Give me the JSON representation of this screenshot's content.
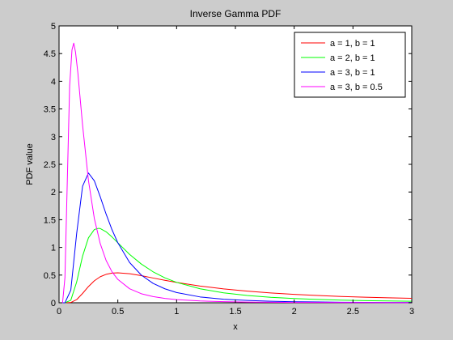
{
  "chart_data": {
    "type": "line",
    "title": "Inverse Gamma PDF",
    "xlabel": "x",
    "ylabel": "PDF value",
    "xlim": [
      0,
      3
    ],
    "ylim": [
      0,
      5
    ],
    "xticks": [
      0,
      0.5,
      1,
      1.5,
      2,
      2.5,
      3
    ],
    "xtick_labels": [
      "0",
      "0.5",
      "1",
      "1.5",
      "2",
      "2.5",
      "3"
    ],
    "yticks": [
      0,
      0.5,
      1,
      1.5,
      2,
      2.5,
      3,
      3.5,
      4,
      4.5,
      5
    ],
    "ytick_labels": [
      "0",
      "0.5",
      "1",
      "1.5",
      "2",
      "2.5",
      "3",
      "3.5",
      "4",
      "4.5",
      "5"
    ],
    "grid": false,
    "legend_position": "top-right",
    "series": [
      {
        "name": "a = 1, b = 1",
        "color": "#ff0000",
        "x": [
          0.01,
          0.05,
          0.1,
          0.15,
          0.2,
          0.25,
          0.3,
          0.35,
          0.4,
          0.45,
          0.5,
          0.6,
          0.7,
          0.8,
          0.9,
          1.0,
          1.2,
          1.4,
          1.6,
          1.8,
          2.0,
          2.2,
          2.4,
          2.6,
          2.8,
          3.0
        ],
        "y": [
          0.0,
          0.0,
          0.005,
          0.057,
          0.168,
          0.293,
          0.397,
          0.47,
          0.513,
          0.535,
          0.541,
          0.525,
          0.489,
          0.447,
          0.405,
          0.368,
          0.302,
          0.25,
          0.21,
          0.177,
          0.152,
          0.131,
          0.114,
          0.101,
          0.089,
          0.08
        ]
      },
      {
        "name": "a = 2, b = 1",
        "color": "#00ff00",
        "x": [
          0.01,
          0.05,
          0.1,
          0.15,
          0.2,
          0.25,
          0.3,
          0.333,
          0.35,
          0.4,
          0.45,
          0.5,
          0.6,
          0.7,
          0.8,
          0.9,
          1.0,
          1.2,
          1.4,
          1.6,
          1.8,
          2.0,
          2.2,
          2.4,
          2.6,
          2.8,
          3.0
        ],
        "y": [
          0.0,
          0.0,
          0.045,
          0.376,
          0.842,
          1.172,
          1.322,
          1.344,
          1.341,
          1.282,
          1.189,
          1.083,
          0.873,
          0.699,
          0.559,
          0.45,
          0.368,
          0.252,
          0.179,
          0.131,
          0.098,
          0.076,
          0.06,
          0.048,
          0.039,
          0.032,
          0.027
        ]
      },
      {
        "name": "a = 3, b = 1",
        "color": "#0000ff",
        "x": [
          0.01,
          0.05,
          0.1,
          0.15,
          0.2,
          0.25,
          0.3,
          0.35,
          0.4,
          0.45,
          0.5,
          0.6,
          0.7,
          0.8,
          0.9,
          1.0,
          1.2,
          1.4,
          1.6,
          1.8,
          2.0,
          2.2,
          2.4,
          2.6,
          2.8,
          3.0
        ],
        "y": [
          0.0,
          0.0,
          0.227,
          1.255,
          2.105,
          2.344,
          2.203,
          1.916,
          1.603,
          1.321,
          1.083,
          0.727,
          0.499,
          0.35,
          0.252,
          0.184,
          0.105,
          0.064,
          0.042,
          0.028,
          0.019,
          0.014,
          0.01,
          0.008,
          0.006,
          0.005
        ]
      },
      {
        "name": "a = 3, b = 0.5",
        "color": "#ff00ff",
        "x": [
          0.01,
          0.03,
          0.05,
          0.07,
          0.09,
          0.11,
          0.125,
          0.14,
          0.16,
          0.18,
          0.2,
          0.25,
          0.3,
          0.35,
          0.4,
          0.45,
          0.5,
          0.6,
          0.7,
          0.8,
          0.9,
          1.0,
          1.2,
          1.4,
          1.6,
          1.8,
          2.0,
          2.5,
          3.0
        ],
        "y": [
          0.0,
          0.0,
          0.454,
          2.181,
          3.917,
          4.567,
          4.689,
          4.527,
          4.152,
          3.678,
          3.211,
          2.21,
          1.523,
          1.07,
          0.766,
          0.56,
          0.422,
          0.253,
          0.163,
          0.111,
          0.079,
          0.057,
          0.033,
          0.02,
          0.013,
          0.009,
          0.006,
          0.003,
          0.002
        ]
      }
    ]
  }
}
